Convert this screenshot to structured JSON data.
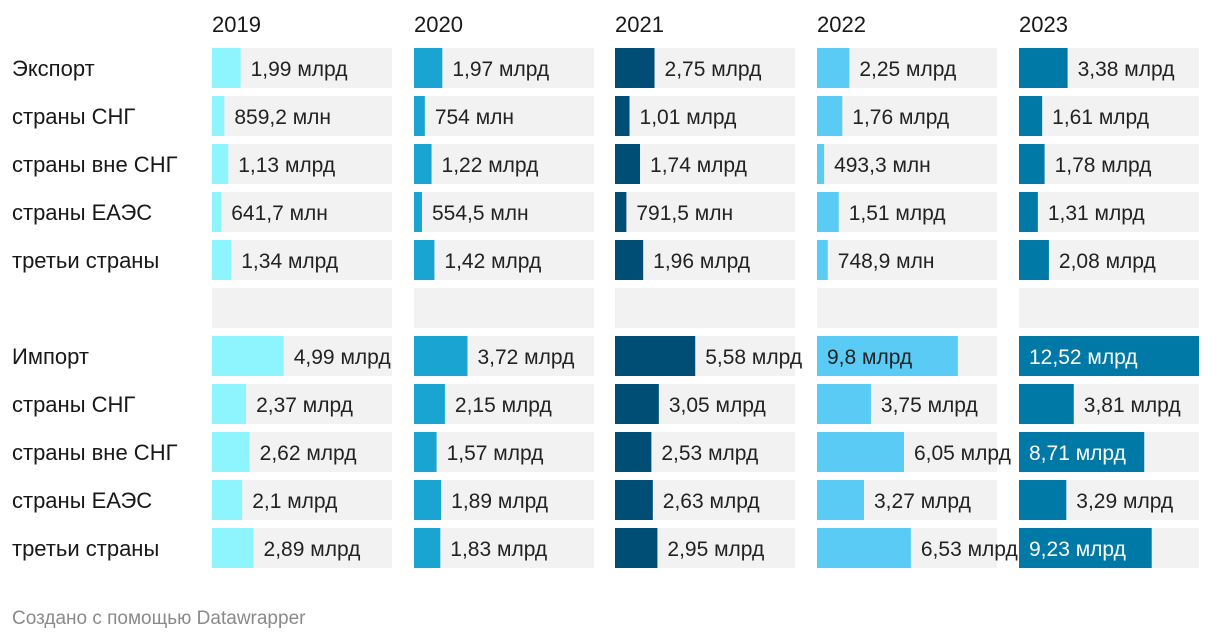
{
  "chart_data": {
    "type": "table",
    "years": [
      "2019",
      "2020",
      "2021",
      "2022",
      "2023"
    ],
    "colors": [
      "#8ef4fe",
      "#19a4d1",
      "#004e76",
      "#59cbf5",
      "#0079a6"
    ],
    "track_color": "#f2f2f2",
    "label_color": "#181818",
    "scale_max": 12.52,
    "unit_note": "values in billions (млрд); млн values converted",
    "rows": [
      {
        "label": "Экспорт",
        "values": [
          1.99,
          1.97,
          2.75,
          2.25,
          3.38
        ],
        "texts": [
          "1,99 млрд",
          "1,97 млрд",
          "2,75 млрд",
          "2,25 млрд",
          "3,38 млрд"
        ]
      },
      {
        "label": "страны СНГ",
        "values": [
          0.8592,
          0.754,
          1.01,
          1.76,
          1.61
        ],
        "texts": [
          "859,2 млн",
          "754 млн",
          "1,01 млрд",
          "1,76 млрд",
          "1,61 млрд"
        ]
      },
      {
        "label": "страны вне СНГ",
        "values": [
          1.13,
          1.22,
          1.74,
          0.4933,
          1.78
        ],
        "texts": [
          "1,13 млрд",
          "1,22 млрд",
          "1,74 млрд",
          "493,3 млн",
          "1,78 млрд"
        ]
      },
      {
        "label": "страны ЕАЭС",
        "values": [
          0.6417,
          0.5545,
          0.7915,
          1.51,
          1.31
        ],
        "texts": [
          "641,7 млн",
          "554,5 млн",
          "791,5 млн",
          "1,51 млрд",
          "1,31 млрд"
        ]
      },
      {
        "label": "третьи страны",
        "values": [
          1.34,
          1.42,
          1.96,
          0.7489,
          2.08
        ],
        "texts": [
          "1,34 млрд",
          "1,42 млрд",
          "1,96 млрд",
          "748,9 млн",
          "2,08 млрд"
        ]
      },
      {
        "label": "",
        "values": [
          null,
          null,
          null,
          null,
          null
        ],
        "texts": [
          "",
          "",
          "",
          "",
          ""
        ]
      },
      {
        "label": "Импорт",
        "values": [
          4.99,
          3.72,
          5.58,
          9.8,
          12.52
        ],
        "texts": [
          "4,99 млрд",
          "3,72 млрд",
          "5,58 млрд",
          "9,8 млрд",
          "12,52 млрд"
        ]
      },
      {
        "label": "страны СНГ",
        "values": [
          2.37,
          2.15,
          3.05,
          3.75,
          3.81
        ],
        "texts": [
          "2,37 млрд",
          "2,15 млрд",
          "3,05 млрд",
          "3,75 млрд",
          "3,81 млрд"
        ]
      },
      {
        "label": "страны вне СНГ",
        "values": [
          2.62,
          1.57,
          2.53,
          6.05,
          8.71
        ],
        "texts": [
          "2,62 млрд",
          "1,57 млрд",
          "2,53 млрд",
          "6,05 млрд",
          "8,71 млрд"
        ]
      },
      {
        "label": "страны ЕАЭС",
        "values": [
          2.1,
          1.89,
          2.63,
          3.27,
          3.29
        ],
        "texts": [
          "2,1 млрд",
          "1,89 млрд",
          "2,63 млрд",
          "3,27 млрд",
          "3,29 млрд"
        ]
      },
      {
        "label": "третьи страны",
        "values": [
          2.89,
          1.83,
          2.95,
          6.53,
          9.23
        ],
        "texts": [
          "2,89 млрд",
          "1,83 млрд",
          "2,95 млрд",
          "6,53 млрд",
          "9,23 млрд"
        ]
      }
    ]
  },
  "footer": {
    "text": "Создано с помощью Datawrapper"
  }
}
